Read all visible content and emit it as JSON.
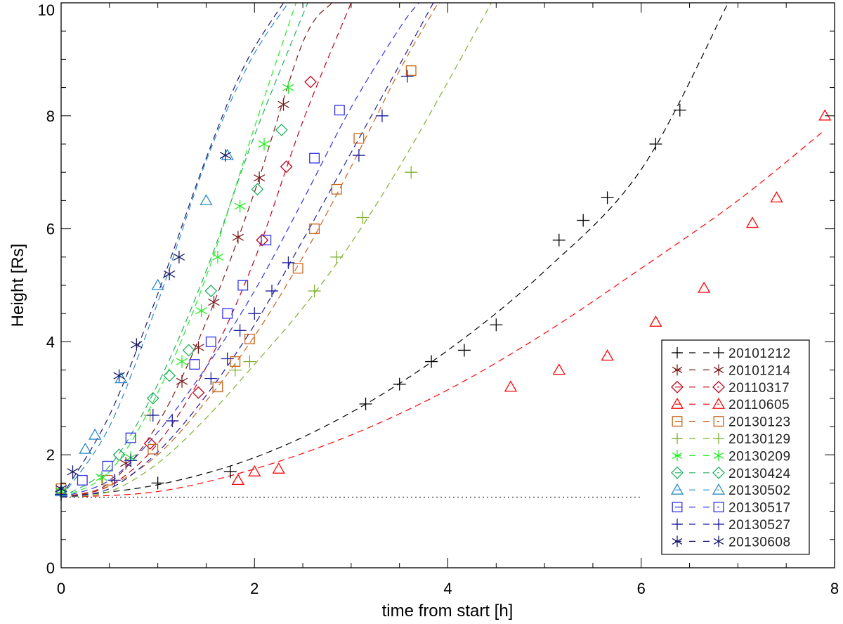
{
  "chart_data": {
    "type": "scatter",
    "title": "",
    "xlabel": "time from start [h]",
    "ylabel": "Height [Rs]",
    "xlim": [
      0,
      8
    ],
    "ylim": [
      0,
      10
    ],
    "xticks": [
      0,
      2,
      4,
      6,
      8
    ],
    "yticks": [
      0,
      2,
      4,
      6,
      8,
      10
    ],
    "x_tick_labels": [
      "0",
      "2",
      "4",
      "6",
      "8"
    ],
    "y_tick_labels": [
      "0",
      "2",
      "4",
      "6",
      "8",
      "10"
    ],
    "grid": false,
    "legend_position": "bottom-right",
    "reference_line": {
      "y": 1.25,
      "x_range": [
        0,
        6.0
      ],
      "style": "dotted",
      "color": "#333333"
    },
    "series": [
      {
        "name": "20101212",
        "color": "#000000",
        "marker": "plus",
        "x": [
          0.0,
          1.0,
          1.75,
          3.15,
          3.5,
          3.83,
          4.17,
          4.5,
          5.15,
          5.4,
          5.65,
          6.15,
          6.4
        ],
        "y": [
          1.3,
          1.5,
          1.7,
          2.9,
          3.25,
          3.65,
          3.85,
          4.3,
          5.8,
          6.15,
          6.55,
          7.5,
          8.1
        ],
        "fit": {
          "x": [
            0,
            1,
            2,
            3,
            4,
            5,
            6,
            6.9
          ],
          "y": [
            1.25,
            1.47,
            1.95,
            2.75,
            3.85,
            5.25,
            7.05,
            10.0
          ]
        }
      },
      {
        "name": "20101214",
        "color": "#7a1a1a",
        "marker": "asterisk",
        "x": [
          0.0,
          0.67,
          1.25,
          1.42,
          1.58,
          1.83,
          2.05,
          2.3
        ],
        "y": [
          1.35,
          1.85,
          3.3,
          3.9,
          4.7,
          5.85,
          6.9,
          8.2
        ],
        "fit": {
          "x": [
            0,
            0.5,
            1,
            1.5,
            2,
            2.5,
            2.8
          ],
          "y": [
            1.25,
            1.5,
            2.55,
            4.35,
            6.65,
            9.3,
            10.0
          ]
        }
      },
      {
        "name": "20110317",
        "color": "#c0001a",
        "marker": "diamond",
        "x": [
          0.0,
          0.92,
          1.42,
          2.08,
          2.33,
          2.58
        ],
        "y": [
          1.35,
          2.2,
          3.1,
          5.8,
          7.1,
          8.6
        ],
        "fit": {
          "x": [
            0,
            0.5,
            1,
            1.5,
            2,
            2.5,
            3.0
          ],
          "y": [
            1.25,
            1.45,
            2.2,
            3.55,
            5.45,
            7.9,
            10.0
          ]
        }
      },
      {
        "name": "20110605",
        "color": "#ff0000",
        "marker": "triangle",
        "x": [
          1.83,
          2.0,
          2.25,
          4.65,
          5.15,
          5.65,
          6.15,
          6.65,
          7.15,
          7.4,
          7.9
        ],
        "y": [
          1.55,
          1.7,
          1.75,
          3.2,
          3.5,
          3.75,
          4.35,
          4.95,
          6.1,
          6.55,
          8.0
        ],
        "fit": {
          "x": [
            0,
            1,
            2,
            3,
            4,
            5,
            6,
            7,
            7.9
          ],
          "y": [
            1.25,
            1.35,
            1.75,
            2.35,
            3.15,
            4.15,
            5.3,
            6.5,
            7.75
          ]
        }
      },
      {
        "name": "20130123",
        "color": "#c8641e",
        "marker": "square",
        "x": [
          0.0,
          0.48,
          0.95,
          1.62,
          1.8,
          1.95,
          2.45,
          2.62,
          2.85,
          3.08,
          3.62
        ],
        "y": [
          1.4,
          1.55,
          2.1,
          3.2,
          3.65,
          4.05,
          5.3,
          6.0,
          6.7,
          7.6,
          8.8
        ],
        "fit": {
          "x": [
            0,
            0.5,
            1,
            1.5,
            2,
            2.5,
            3,
            3.5,
            3.9
          ],
          "y": [
            1.25,
            1.45,
            2.0,
            2.95,
            4.1,
            5.5,
            7.1,
            8.8,
            10.0
          ]
        }
      },
      {
        "name": "20130129",
        "color": "#7fb030",
        "marker": "plus",
        "x": [
          0.0,
          0.92,
          1.8,
          1.95,
          2.62,
          2.85,
          3.12,
          3.62
        ],
        "y": [
          1.3,
          2.7,
          3.5,
          3.65,
          4.9,
          5.5,
          6.2,
          7.0
        ],
        "fit": {
          "x": [
            0,
            0.5,
            1,
            1.5,
            2,
            2.5,
            3,
            3.5,
            4,
            4.45
          ],
          "y": [
            1.25,
            1.35,
            1.85,
            2.65,
            3.6,
            4.6,
            5.75,
            7.1,
            8.6,
            10.0
          ]
        }
      },
      {
        "name": "20130209",
        "color": "#22ee22",
        "marker": "asterisk",
        "x": [
          0.0,
          0.42,
          0.72,
          1.25,
          1.45,
          1.62,
          1.85,
          2.1,
          2.35
        ],
        "y": [
          1.35,
          1.6,
          1.95,
          3.65,
          4.55,
          5.5,
          6.4,
          7.5,
          8.5
        ],
        "fit": {
          "x": [
            0,
            0.5,
            1,
            1.5,
            2,
            2.43
          ],
          "y": [
            1.25,
            1.7,
            3.1,
            5.15,
            7.8,
            10.0
          ]
        }
      },
      {
        "name": "20130424",
        "color": "#20b060",
        "marker": "diamond",
        "x": [
          0.0,
          0.6,
          0.95,
          1.12,
          1.32,
          1.55,
          2.03,
          2.28
        ],
        "y": [
          1.35,
          2.0,
          3.0,
          3.4,
          3.85,
          4.9,
          6.7,
          7.75
        ],
        "fit": {
          "x": [
            0,
            0.5,
            1,
            1.5,
            2,
            2.55
          ],
          "y": [
            1.25,
            1.8,
            3.25,
            5.25,
            7.65,
            10.0
          ]
        }
      },
      {
        "name": "20130502",
        "color": "#2a8ac8",
        "marker": "triangle",
        "x": [
          0.0,
          0.25,
          0.35,
          0.62,
          1.0,
          1.5,
          1.72
        ],
        "y": [
          1.35,
          2.1,
          2.35,
          3.35,
          5.0,
          6.5,
          7.3
        ],
        "fit": {
          "x": [
            0,
            0.5,
            1,
            1.5,
            1.95,
            2.35
          ],
          "y": [
            1.25,
            2.5,
            4.7,
            7.2,
            8.95,
            10.0
          ]
        }
      },
      {
        "name": "20130517",
        "color": "#3030e8",
        "marker": "square",
        "x": [
          0.22,
          0.48,
          0.72,
          1.38,
          1.55,
          1.72,
          1.88,
          2.12,
          2.62,
          2.88
        ],
        "y": [
          1.55,
          1.8,
          2.3,
          3.6,
          4.0,
          4.5,
          5.0,
          5.8,
          7.25,
          8.1
        ],
        "fit": {
          "x": [
            0,
            0.5,
            1,
            1.5,
            2,
            2.5,
            3,
            3.5,
            3.7
          ],
          "y": [
            1.25,
            1.55,
            2.4,
            3.55,
            4.9,
            6.5,
            8.15,
            9.55,
            10.0
          ]
        }
      },
      {
        "name": "20130527",
        "color": "#1a1aa0",
        "marker": "plus",
        "x": [
          0.0,
          0.55,
          0.72,
          0.95,
          1.15,
          1.55,
          1.72,
          1.85,
          2.0,
          2.18,
          2.35,
          3.08,
          3.32,
          3.58
        ],
        "y": [
          1.3,
          1.55,
          1.9,
          2.7,
          2.6,
          3.35,
          3.7,
          4.2,
          4.5,
          4.9,
          5.4,
          7.3,
          8.0,
          8.7
        ],
        "fit": {
          "x": [
            0,
            0.5,
            1,
            1.5,
            2,
            2.5,
            3,
            3.5,
            3.85
          ],
          "y": [
            1.25,
            1.4,
            2.05,
            3.05,
            4.3,
            5.8,
            7.35,
            8.9,
            10.0
          ]
        }
      },
      {
        "name": "20130608",
        "color": "#18186a",
        "marker": "asterisk",
        "x": [
          0.0,
          0.12,
          0.6,
          0.78,
          1.12,
          1.22,
          1.7
        ],
        "y": [
          1.4,
          1.7,
          3.4,
          3.95,
          5.2,
          5.5,
          7.3
        ],
        "fit": {
          "x": [
            0,
            0.5,
            1,
            1.5,
            1.9,
            2.3
          ],
          "y": [
            1.25,
            2.7,
            4.85,
            7.25,
            8.9,
            10.0
          ]
        }
      }
    ]
  }
}
